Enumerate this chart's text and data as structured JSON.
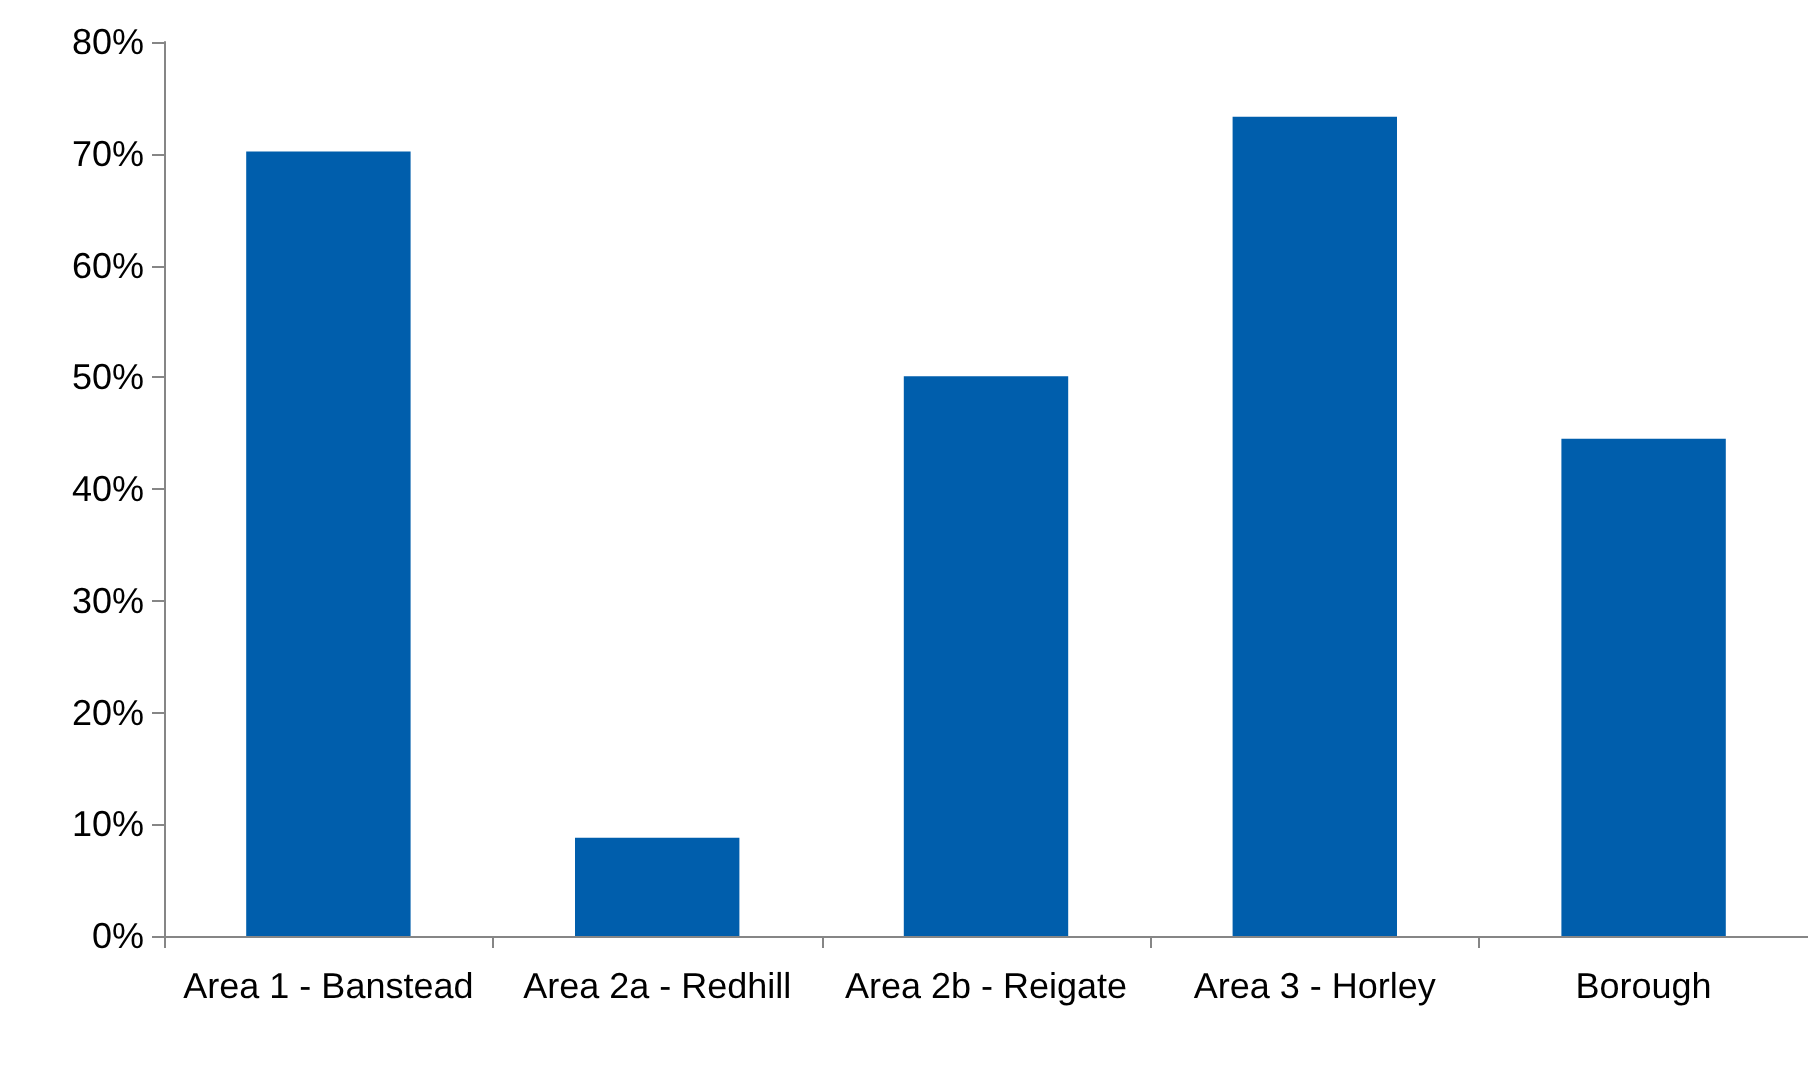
{
  "chart_data": {
    "type": "bar",
    "categories": [
      "Area 1 - Banstead",
      "Area 2a - Redhill",
      "Area 2b - Reigate",
      "Area 3 - Horley",
      "Borough"
    ],
    "values": [
      70.2,
      8.8,
      50.1,
      73.3,
      44.5
    ],
    "color": "#005eac",
    "grid": false,
    "ylim": [
      0,
      80
    ],
    "yticks": [
      {
        "value": 0,
        "label": "0%"
      },
      {
        "value": 10,
        "label": "10%"
      },
      {
        "value": 20,
        "label": "20%"
      },
      {
        "value": 30,
        "label": "30%"
      },
      {
        "value": 40,
        "label": "40%"
      },
      {
        "value": 50,
        "label": "50%"
      },
      {
        "value": 60,
        "label": "60%"
      },
      {
        "value": 70,
        "label": "70%"
      },
      {
        "value": 80,
        "label": "80%"
      }
    ]
  }
}
